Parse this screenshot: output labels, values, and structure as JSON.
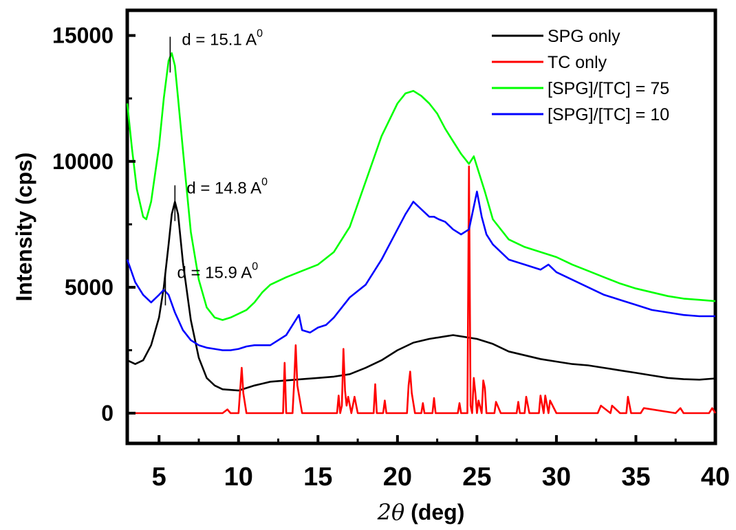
{
  "chart_data": {
    "type": "line",
    "title": "",
    "xlabel": {
      "symbol": "2θ",
      "rest": " (deg)"
    },
    "ylabel": "Intensity (cps)",
    "xlim": [
      3,
      40
    ],
    "ylim": [
      -1200,
      16000
    ],
    "grid": false,
    "legend_position": "top-right",
    "x_ticks": [
      5,
      10,
      15,
      20,
      25,
      30,
      35,
      40
    ],
    "x_tick_labels": [
      "5",
      "10",
      "15",
      "20",
      "25",
      "30",
      "35",
      "40"
    ],
    "y_ticks": [
      0,
      5000,
      10000,
      15000
    ],
    "y_tick_labels": [
      "0",
      "5000",
      "10000",
      "15000"
    ],
    "series": [
      {
        "name": "SPG only",
        "color": "#000000",
        "x": [
          3,
          3.5,
          4,
          4.5,
          5,
          5.3,
          5.6,
          5.8,
          6,
          6.2,
          6.5,
          7,
          7.5,
          8,
          8.5,
          9,
          10,
          11,
          12,
          13,
          14,
          15,
          16,
          17,
          18,
          19,
          20,
          21,
          22,
          23,
          23.5,
          24,
          25,
          26,
          27,
          28,
          29,
          30,
          31,
          32,
          33,
          34,
          35,
          36,
          37,
          38,
          39,
          40
        ],
        "y": [
          2100,
          1950,
          2100,
          2700,
          3800,
          5000,
          6700,
          7900,
          8400,
          7900,
          6000,
          3700,
          2200,
          1400,
          1100,
          950,
          900,
          1100,
          1250,
          1300,
          1350,
          1400,
          1450,
          1550,
          1800,
          2100,
          2500,
          2800,
          2950,
          3050,
          3100,
          3050,
          2950,
          2750,
          2450,
          2300,
          2150,
          2050,
          1950,
          1900,
          1800,
          1700,
          1600,
          1500,
          1400,
          1350,
          1330,
          1380
        ]
      },
      {
        "name": "TC only",
        "color": "#ff0000",
        "x": [
          3,
          9,
          9.3,
          9.5,
          10,
          10.1,
          10.2,
          10.3,
          10.5,
          12.8,
          12.9,
          13,
          13.4,
          13.5,
          13.6,
          13.7,
          14,
          16.2,
          16.3,
          16.4,
          16.5,
          16.6,
          16.7,
          16.8,
          16.9,
          17.1,
          17.3,
          17.5,
          18.5,
          18.6,
          18.7,
          18.8,
          19.1,
          19.2,
          19.3,
          20.6,
          20.7,
          20.8,
          20.9,
          21.1,
          21.5,
          21.6,
          21.7,
          22.2,
          22.3,
          22.4,
          23.8,
          23.9,
          24.0,
          24.4,
          24.5,
          24.6,
          24.7,
          24.8,
          24.9,
          25.0,
          25.1,
          25.3,
          25.4,
          25.5,
          25.6,
          25.8,
          26.1,
          26.2,
          26.5,
          27.5,
          27.6,
          27.7,
          28.0,
          28.1,
          28.3,
          28.9,
          29.0,
          29.2,
          29.3,
          29.5,
          29.6,
          30,
          32.6,
          32.8,
          33.4,
          33.5,
          34.0,
          34.4,
          34.5,
          34.7,
          35.3,
          35.5,
          37.5,
          37.8,
          38.0,
          39.6,
          39.8,
          40
        ],
        "y": [
          0,
          0,
          150,
          0,
          0,
          900,
          1800,
          800,
          0,
          0,
          2000,
          0,
          0,
          1200,
          2700,
          1100,
          0,
          0,
          700,
          0,
          300,
          2550,
          900,
          300,
          650,
          0,
          650,
          0,
          0,
          1150,
          0,
          0,
          0,
          500,
          0,
          0,
          1100,
          1650,
          800,
          0,
          0,
          400,
          0,
          0,
          600,
          0,
          0,
          400,
          0,
          0,
          9800,
          300,
          0,
          1400,
          800,
          0,
          500,
          0,
          1300,
          1000,
          0,
          0,
          0,
          450,
          0,
          0,
          450,
          0,
          0,
          650,
          0,
          0,
          700,
          0,
          700,
          0,
          500,
          0,
          0,
          300,
          0,
          300,
          0,
          0,
          650,
          0,
          0,
          200,
          0,
          200,
          0,
          0,
          200,
          0
        ]
      },
      {
        "name": "[SPG]/[TC] = 75",
        "color": "#00ff00",
        "x": [
          3,
          3.3,
          3.6,
          4,
          4.2,
          4.5,
          5,
          5.3,
          5.6,
          5.8,
          6,
          6.2,
          6.6,
          7,
          7.5,
          8,
          8.5,
          9,
          9.5,
          10,
          10.5,
          11,
          11.5,
          12,
          13,
          14,
          15,
          16,
          17,
          18,
          19,
          20,
          20.5,
          21,
          21.5,
          22,
          22.5,
          23,
          23.5,
          24,
          24.5,
          24.8,
          25,
          25.5,
          26,
          27,
          28,
          29,
          30,
          31,
          32,
          33,
          34,
          35,
          36,
          37,
          38,
          39,
          40
        ],
        "y": [
          12300,
          10500,
          8900,
          7800,
          7700,
          8400,
          10600,
          12500,
          14000,
          14300,
          13800,
          12500,
          9800,
          7200,
          5300,
          4200,
          3800,
          3700,
          3800,
          3950,
          4100,
          4400,
          4800,
          5100,
          5400,
          5650,
          5900,
          6400,
          7400,
          9200,
          11000,
          12300,
          12700,
          12800,
          12600,
          12300,
          11900,
          11300,
          10800,
          10300,
          9900,
          10200,
          9800,
          8800,
          7700,
          6900,
          6600,
          6400,
          6200,
          5900,
          5650,
          5400,
          5150,
          4950,
          4800,
          4650,
          4550,
          4500,
          4450
        ]
      },
      {
        "name": "[SPG]/[TC] = 10",
        "color": "#0000ff",
        "x": [
          3,
          3.5,
          4,
          4.5,
          5,
          5.3,
          5.6,
          6,
          6.5,
          7,
          7.5,
          8,
          8.5,
          9,
          9.5,
          10,
          10.5,
          11,
          12,
          13,
          13.5,
          13.8,
          14,
          14.5,
          15,
          15.5,
          16,
          16.5,
          17,
          18,
          19,
          20,
          20.5,
          21,
          21.5,
          22,
          22.3,
          22.6,
          23,
          23.5,
          24,
          24.5,
          24.8,
          25,
          25.3,
          25.6,
          26,
          27,
          28,
          29,
          29.5,
          30,
          31,
          32,
          33,
          34,
          35,
          36,
          37,
          38,
          39,
          40
        ],
        "y": [
          6100,
          5200,
          4700,
          4400,
          4700,
          4900,
          4700,
          4000,
          3300,
          2900,
          2700,
          2600,
          2550,
          2500,
          2500,
          2550,
          2650,
          2700,
          2700,
          3100,
          3600,
          3900,
          3300,
          3200,
          3400,
          3500,
          3800,
          4200,
          4600,
          5100,
          6100,
          7300,
          7900,
          8400,
          8100,
          7800,
          7800,
          7700,
          7600,
          7300,
          7100,
          7300,
          8200,
          8800,
          7800,
          7100,
          6700,
          6100,
          5900,
          5700,
          5900,
          5600,
          5300,
          5000,
          4700,
          4500,
          4300,
          4100,
          4000,
          3900,
          3850,
          3850
        ]
      }
    ],
    "annotations": [
      {
        "text": "d = 15.1 A",
        "superscript": "0",
        "x": 5.7,
        "y": 14950
      },
      {
        "text": "d = 14.8 A",
        "superscript": "0",
        "x": 6.0,
        "y": 9050
      },
      {
        "text": "d = 15.9 A",
        "superscript": "0",
        "x": 5.4,
        "y": 5700
      }
    ]
  }
}
